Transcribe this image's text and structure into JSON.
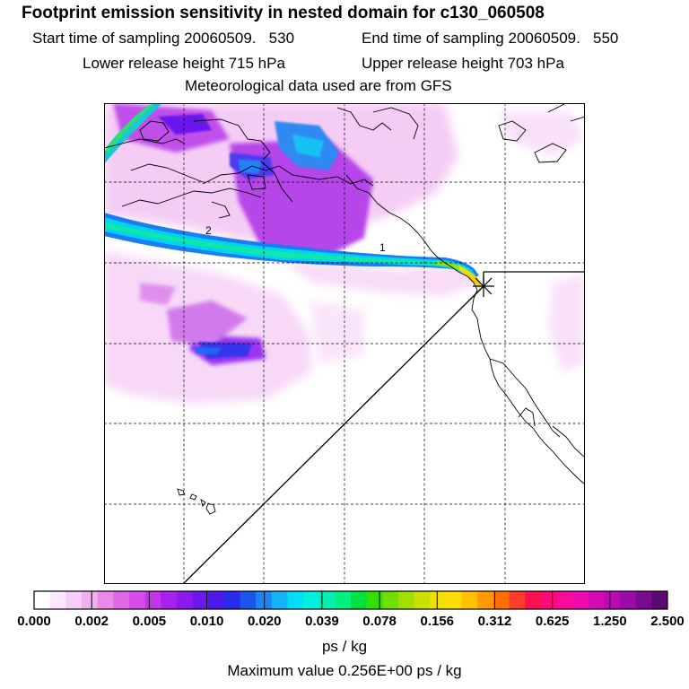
{
  "title": "Footprint emission sensitivity in nested domain for c130_060508",
  "header": {
    "start_label": "Start time of sampling",
    "start_value": "20060509.   530",
    "end_label": "End time of sampling",
    "end_value": "20060509.   550",
    "lower_label": "Lower release height",
    "lower_value": "715 hPa",
    "upper_label": "Upper release height",
    "upper_value": "703 hPa",
    "met": "Meteorological data used are from GFS"
  },
  "map": {
    "contour_labels": [
      "2",
      "1"
    ],
    "release_marker": "release-site-star"
  },
  "colorbar": {
    "labels": [
      "0.000",
      "0.002",
      "0.005",
      "0.010",
      "0.020",
      "0.039",
      "0.078",
      "0.156",
      "0.312",
      "0.625",
      "1.250",
      "2.500"
    ],
    "colors": [
      "#ffffff",
      "#fbe6fb",
      "#f6cdf6",
      "#f0b0f0",
      "#e98ae9",
      "#e06ae6",
      "#d54ce8",
      "#c233ea",
      "#a722ee",
      "#8a1aef",
      "#6a18ef",
      "#4b1aef",
      "#2a2aef",
      "#1a55f0",
      "#1a85f5",
      "#14b2f7",
      "#00ddf5",
      "#00f0e0",
      "#00f0b0",
      "#00f080",
      "#00e040",
      "#33e000",
      "#6ee000",
      "#9ee000",
      "#cce000",
      "#eee000",
      "#ffdd00",
      "#ffc000",
      "#ff9a00",
      "#ff7000",
      "#ff3c2a",
      "#ff1050",
      "#ff0a78",
      "#ff0a98",
      "#f00ab0",
      "#d80ab8",
      "#bb0ab5",
      "#9c0aa8",
      "#7a0a90",
      "#5a0a70"
    ],
    "unit": "ps / kg"
  },
  "max_value_text": "Maximum value  0.256E+00 ps / kg"
}
